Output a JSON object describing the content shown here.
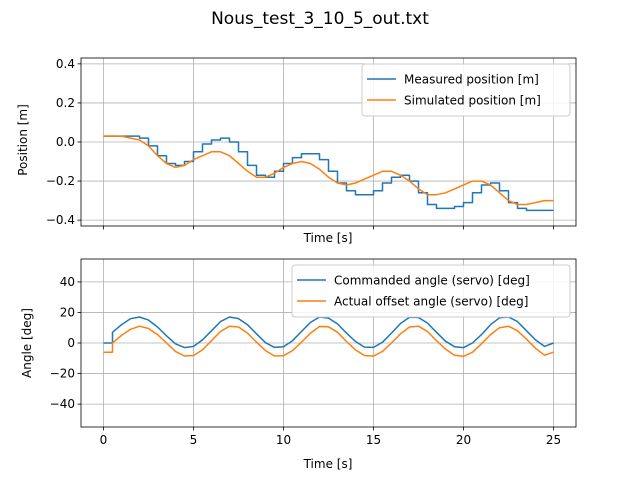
{
  "title": "Nous_test_3_10_5_out.txt",
  "chart_data": [
    {
      "type": "line",
      "xlabel": "Time [s]",
      "ylabel": "Position [m]",
      "xlim": [
        -1.25,
        26.25
      ],
      "ylim": [
        -0.43,
        0.43
      ],
      "xticks": [
        0,
        5,
        10,
        15,
        20,
        25
      ],
      "show_xticklabels": false,
      "yticks": [
        -0.4,
        -0.2,
        0.0,
        0.2,
        0.4
      ],
      "ytick_labels": [
        "−0.4",
        "−0.2",
        "0.0",
        "0.2",
        "0.4"
      ],
      "grid": true,
      "legend": "top-right",
      "series": [
        {
          "name": "Measured position [m]",
          "color": "#1f77b4",
          "step": true,
          "x": [
            0,
            0.5,
            1,
            1.5,
            2,
            2.5,
            3,
            3.5,
            4,
            4.5,
            5,
            5.5,
            6,
            6.5,
            7,
            7.5,
            8,
            8.5,
            9,
            9.5,
            10,
            10.5,
            11,
            11.5,
            12,
            12.5,
            13,
            13.5,
            14,
            14.5,
            15,
            15.5,
            16,
            16.5,
            17,
            17.5,
            18,
            18.5,
            19,
            19.5,
            20,
            20.5,
            21,
            21.5,
            22,
            22.5,
            23,
            23.5,
            24,
            24.5,
            25
          ],
          "values": [
            0.03,
            0.03,
            0.03,
            0.03,
            0.02,
            -0.02,
            -0.07,
            -0.11,
            -0.12,
            -0.1,
            -0.05,
            -0.01,
            0.01,
            0.02,
            0.0,
            -0.05,
            -0.12,
            -0.17,
            -0.18,
            -0.15,
            -0.11,
            -0.08,
            -0.06,
            -0.06,
            -0.09,
            -0.15,
            -0.21,
            -0.25,
            -0.27,
            -0.27,
            -0.25,
            -0.21,
            -0.18,
            -0.17,
            -0.2,
            -0.26,
            -0.32,
            -0.34,
            -0.34,
            -0.33,
            -0.31,
            -0.26,
            -0.22,
            -0.21,
            -0.25,
            -0.31,
            -0.34,
            -0.35,
            -0.35,
            -0.35,
            -0.35
          ]
        },
        {
          "name": "Simulated position [m]",
          "color": "#ff7f0e",
          "step": false,
          "x": [
            0,
            0.5,
            1,
            1.5,
            2,
            2.5,
            3,
            3.5,
            4,
            4.5,
            5,
            5.5,
            6,
            6.5,
            7,
            7.5,
            8,
            8.5,
            9,
            9.5,
            10,
            10.5,
            11,
            11.5,
            12,
            12.5,
            13,
            13.5,
            14,
            14.5,
            15,
            15.5,
            16,
            16.5,
            17,
            17.5,
            18,
            18.5,
            19,
            19.5,
            20,
            20.5,
            21,
            21.5,
            22,
            22.5,
            23,
            23.5,
            24,
            24.5,
            25
          ],
          "values": [
            0.03,
            0.03,
            0.03,
            0.02,
            0.01,
            -0.02,
            -0.07,
            -0.11,
            -0.13,
            -0.12,
            -0.09,
            -0.07,
            -0.05,
            -0.05,
            -0.07,
            -0.11,
            -0.15,
            -0.18,
            -0.18,
            -0.16,
            -0.13,
            -0.11,
            -0.1,
            -0.11,
            -0.14,
            -0.18,
            -0.21,
            -0.22,
            -0.21,
            -0.19,
            -0.17,
            -0.15,
            -0.15,
            -0.17,
            -0.2,
            -0.24,
            -0.27,
            -0.27,
            -0.26,
            -0.24,
            -0.22,
            -0.2,
            -0.2,
            -0.22,
            -0.26,
            -0.3,
            -0.32,
            -0.32,
            -0.31,
            -0.3,
            -0.3
          ]
        }
      ]
    },
    {
      "type": "line",
      "xlabel": "Time [s]",
      "ylabel": "Angle [deg]",
      "xlim": [
        -1.25,
        26.25
      ],
      "ylim": [
        -55,
        55
      ],
      "xticks": [
        0,
        5,
        10,
        15,
        20,
        25
      ],
      "xtick_labels": [
        "0",
        "5",
        "10",
        "15",
        "20",
        "25"
      ],
      "show_xticklabels": true,
      "yticks": [
        -40,
        -20,
        0,
        20,
        40
      ],
      "ytick_labels": [
        "−40",
        "−20",
        "0",
        "20",
        "40"
      ],
      "grid": true,
      "legend": "top-right",
      "series": [
        {
          "name": "Commanded angle (servo) [deg]",
          "color": "#1f77b4",
          "step": false,
          "x": [
            0,
            0.5,
            0.5,
            1,
            1.5,
            2,
            2.5,
            3,
            3.5,
            4,
            4.5,
            5,
            5.5,
            6,
            6.5,
            7,
            7.5,
            8,
            8.5,
            9,
            9.5,
            10,
            10.5,
            11,
            11.5,
            12,
            12.5,
            13,
            13.5,
            14,
            14.5,
            15,
            15.5,
            16,
            16.5,
            17,
            17.5,
            18,
            18.5,
            19,
            19.5,
            20,
            20.5,
            21,
            21.5,
            22,
            22.5,
            23,
            23.5,
            24,
            24.5,
            25
          ],
          "values": [
            0,
            0,
            7,
            12,
            15.9,
            17,
            15,
            10.5,
            4.7,
            -0.5,
            -3,
            -2.2,
            2,
            8,
            14,
            17,
            16,
            12,
            6,
            0.2,
            -2.9,
            -2.5,
            1.5,
            7.5,
            13.5,
            17,
            16.3,
            12.5,
            6.5,
            1,
            -2.7,
            -2.9,
            0.5,
            6.5,
            12.8,
            16.8,
            16.7,
            13,
            7,
            1.2,
            -2.4,
            -3,
            0,
            5.5,
            12,
            16.5,
            17,
            14,
            8,
            2,
            -2.2,
            0
          ]
        },
        {
          "name": "Actual offset angle (servo) [deg]",
          "color": "#ff7f0e",
          "step": false,
          "x": [
            0,
            0.5,
            0.5,
            1,
            1.5,
            2,
            2.5,
            3,
            3.5,
            4,
            4.5,
            5,
            5.5,
            6,
            6.5,
            7,
            7.5,
            8,
            8.5,
            9,
            9.5,
            10,
            10.5,
            11,
            11.5,
            12,
            12.5,
            13,
            13.5,
            14,
            14.5,
            15,
            15.5,
            16,
            16.5,
            17,
            17.5,
            18,
            18.5,
            19,
            19.5,
            20,
            20.5,
            21,
            21.5,
            22,
            22.5,
            23,
            23.5,
            24,
            24.5,
            25
          ],
          "values": [
            -6,
            -6,
            0,
            5,
            9,
            11,
            9.5,
            5.5,
            0,
            -5.5,
            -8.5,
            -8.2,
            -4.5,
            1.5,
            7.5,
            11,
            10.5,
            6.5,
            0.5,
            -5,
            -8.5,
            -8.3,
            -5,
            0.5,
            6.5,
            10.8,
            10.6,
            7,
            1,
            -4.5,
            -8.2,
            -8.6,
            -5.5,
            0,
            6,
            10.5,
            11,
            7.5,
            1.5,
            -4,
            -8,
            -8.8,
            -6,
            -0.5,
            5.5,
            10,
            11,
            8,
            2.5,
            -3.5,
            -8,
            -6
          ]
        }
      ]
    }
  ]
}
